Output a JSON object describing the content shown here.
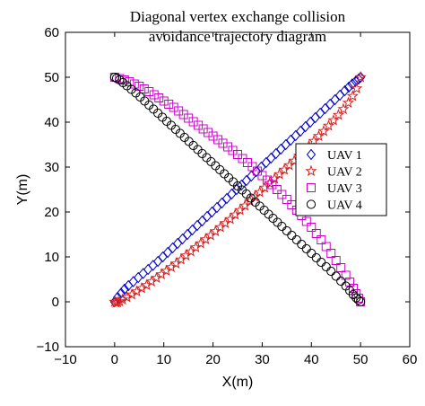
{
  "chart_data": {
    "type": "scatter",
    "title_lines": [
      "Diagonal vertex exchange collision",
      "avoidance trajectory diagram"
    ],
    "xlabel": "X(m)",
    "ylabel": "Y(m)",
    "xlim": [
      -10,
      60
    ],
    "ylim": [
      -10,
      60
    ],
    "xticks": [
      -10,
      0,
      10,
      20,
      30,
      40,
      50,
      60
    ],
    "yticks": [
      -10,
      0,
      10,
      20,
      30,
      40,
      50,
      60
    ],
    "xtick_labels": [
      "−10",
      "0",
      "10",
      "20",
      "30",
      "40",
      "50",
      "60"
    ],
    "ytick_labels": [
      "−10",
      "0",
      "10",
      "20",
      "30",
      "40",
      "50",
      "60"
    ],
    "grid": false,
    "legend_position": "right",
    "series": [
      {
        "name": "UAV 1",
        "marker": "diamond",
        "color": "#0000CC",
        "x": [
          0,
          0.6,
          1.3,
          2.0,
          2.8,
          3.8,
          4.8,
          5.8,
          6.8,
          7.8,
          8.8,
          9.8,
          10.8,
          11.8,
          12.8,
          13.8,
          14.8,
          15.8,
          16.8,
          17.8,
          18.8,
          19.8,
          20.8,
          21.8,
          22.8,
          23.8,
          24.8,
          25.8,
          26.8,
          27.8,
          28.8,
          29.8,
          30.8,
          31.8,
          32.8,
          33.8,
          34.8,
          35.8,
          36.8,
          37.8,
          38.8,
          39.8,
          40.8,
          41.8,
          42.8,
          43.8,
          44.8,
          45.8,
          46.8,
          47.6,
          48.3,
          49.0,
          49.6,
          50.0
        ],
        "y": [
          0,
          1.0,
          1.9,
          2.8,
          3.6,
          4.5,
          5.4,
          6.3,
          7.2,
          8.1,
          9.0,
          10.0,
          11.0,
          12.0,
          13.0,
          14.0,
          15.0,
          16.0,
          17.0,
          18.0,
          19.0,
          20.0,
          21.0,
          22.0,
          23.0,
          24.0,
          25.0,
          26.0,
          27.0,
          28.0,
          29.0,
          30.0,
          31.0,
          32.0,
          33.0,
          34.0,
          35.0,
          36.0,
          37.0,
          38.0,
          39.0,
          40.0,
          41.0,
          42.0,
          43.0,
          44.0,
          45.0,
          46.0,
          47.0,
          47.8,
          48.5,
          49.1,
          49.6,
          50.0
        ]
      },
      {
        "name": "UAV 2",
        "marker": "star",
        "color": "#D62020",
        "x": [
          0,
          0.3,
          0.6,
          1.0,
          1.6,
          2.5,
          3.5,
          4.5,
          5.5,
          6.5,
          7.5,
          8.5,
          9.5,
          10.5,
          11.5,
          12.5,
          13.5,
          14.5,
          15.5,
          16.5,
          17.5,
          18.5,
          19.5,
          20.5,
          21.5,
          22.5,
          23.5,
          24.5,
          25.5,
          26.5,
          27.5,
          28.5,
          29.5,
          30.5,
          31.5,
          32.5,
          33.5,
          34.5,
          35.5,
          36.5,
          37.5,
          38.5,
          39.5,
          40.5,
          41.5,
          42.5,
          43.5,
          44.5,
          45.5,
          46.5,
          47.5,
          48.4,
          49.2,
          50.0
        ],
        "y": [
          0,
          -0.2,
          -0.1,
          0.1,
          0.5,
          1.0,
          1.6,
          2.3,
          3.0,
          3.7,
          4.5,
          5.3,
          6.1,
          6.9,
          7.7,
          8.5,
          9.4,
          10.3,
          11.2,
          12.1,
          13.0,
          13.9,
          14.8,
          15.7,
          16.6,
          17.5,
          18.4,
          19.4,
          20.4,
          21.4,
          22.4,
          23.4,
          24.4,
          25.4,
          26.4,
          27.4,
          28.4,
          29.4,
          30.4,
          31.4,
          32.5,
          33.6,
          34.7,
          35.8,
          36.9,
          38.0,
          39.2,
          40.4,
          41.6,
          42.9,
          44.3,
          45.8,
          47.5,
          50.0
        ]
      },
      {
        "name": "UAV 3",
        "marker": "square",
        "color": "#CC00CC",
        "x": [
          0,
          1.0,
          2.0,
          3.0,
          4.0,
          5.0,
          6.0,
          7.0,
          8.0,
          9.0,
          10.0,
          11.0,
          12.0,
          13.0,
          14.0,
          15.0,
          16.0,
          17.0,
          18.0,
          19.0,
          20.0,
          21.0,
          22.0,
          23.0,
          24.0,
          25.0,
          26.0,
          27.0,
          28.0,
          29.0,
          30.0,
          31.0,
          32.0,
          33.0,
          34.0,
          35.0,
          36.0,
          37.0,
          38.0,
          39.0,
          40.0,
          41.0,
          42.0,
          43.0,
          44.0,
          45.0,
          46.0,
          47.0,
          47.8,
          48.5,
          49.1,
          49.6,
          50.0
        ],
        "y": [
          50,
          49.7,
          49.4,
          49.0,
          48.5,
          48.0,
          47.4,
          46.8,
          46.1,
          45.4,
          44.7,
          44.0,
          43.3,
          42.5,
          41.7,
          40.9,
          40.1,
          39.3,
          38.5,
          37.7,
          36.9,
          36.1,
          35.3,
          34.5,
          33.7,
          32.8,
          31.9,
          31.0,
          30.1,
          29.1,
          28.1,
          27.1,
          26.1,
          25.0,
          23.9,
          22.8,
          21.6,
          20.4,
          19.2,
          17.9,
          16.6,
          15.2,
          13.8,
          12.3,
          10.8,
          9.2,
          7.6,
          5.9,
          4.4,
          3.0,
          1.8,
          0.8,
          0
        ]
      },
      {
        "name": "UAV 4",
        "marker": "circle",
        "color": "#000000",
        "x": [
          0,
          0.4,
          1.0,
          1.7,
          2.5,
          3.4,
          4.3,
          5.2,
          6.1,
          7.0,
          7.9,
          8.8,
          9.7,
          10.6,
          11.5,
          12.4,
          13.3,
          14.2,
          15.1,
          16.0,
          16.9,
          17.8,
          18.7,
          19.6,
          20.5,
          21.4,
          22.3,
          23.2,
          24.1,
          25.0,
          25.9,
          26.8,
          27.7,
          28.6,
          29.5,
          30.4,
          31.3,
          32.2,
          33.1,
          34.0,
          35.0,
          36.0,
          37.0,
          38.0,
          39.0,
          40.0,
          41.0,
          42.0,
          43.0,
          44.0,
          45.0,
          46.0,
          47.0,
          47.8,
          48.5,
          49.1,
          49.6,
          50.0
        ],
        "y": [
          50,
          49.8,
          49.4,
          48.8,
          48.1,
          47.3,
          46.5,
          45.6,
          44.7,
          43.8,
          42.9,
          42.0,
          41.1,
          40.2,
          39.3,
          38.4,
          37.5,
          36.6,
          35.7,
          34.8,
          33.9,
          33.0,
          32.1,
          31.2,
          30.3,
          29.4,
          28.5,
          27.6,
          26.7,
          25.8,
          24.9,
          24.0,
          23.1,
          22.2,
          21.3,
          20.4,
          19.5,
          18.6,
          17.7,
          16.8,
          15.8,
          14.8,
          13.8,
          12.8,
          11.8,
          10.8,
          9.8,
          8.8,
          7.8,
          6.8,
          5.7,
          4.6,
          3.5,
          2.5,
          1.6,
          0.9,
          0.4,
          0
        ]
      }
    ]
  }
}
